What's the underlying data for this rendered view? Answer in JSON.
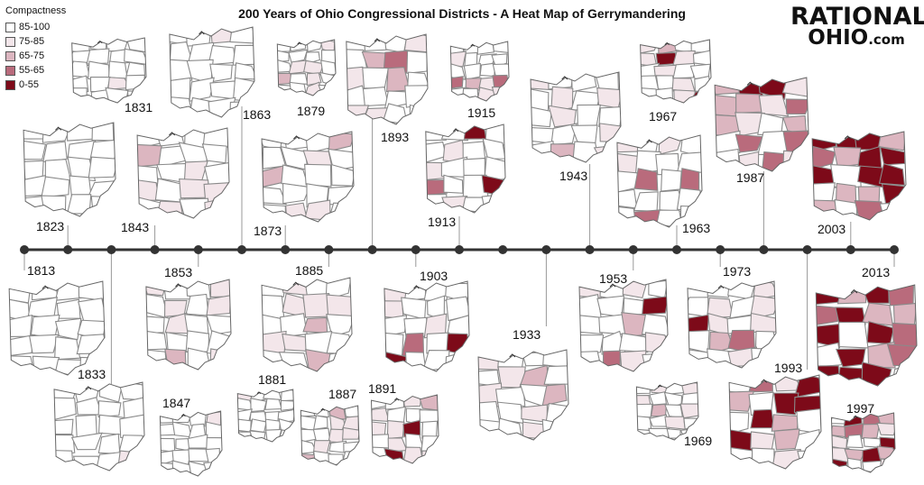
{
  "title": "200 Years of Ohio Congressional Districts - A Heat Map of Gerrymandering",
  "logo": {
    "line1": "RATIONAL",
    "line2": "OHIO",
    "line2_suffix": ".com"
  },
  "legend": {
    "title": "Compactness",
    "items": [
      {
        "label": "85-100",
        "color": "#ffffff"
      },
      {
        "label": "75-85",
        "color": "#f3e6ea"
      },
      {
        "label": "65-75",
        "color": "#dcb6c0"
      },
      {
        "label": "55-65",
        "color": "#b96b7c"
      },
      {
        "label": "0-55",
        "color": "#7d0a19"
      }
    ]
  },
  "timeline": {
    "line_color": "#333333",
    "dot_color": "#333333",
    "years": [
      "1813",
      "1823",
      "1831",
      "1833",
      "1843",
      "1847",
      "1853",
      "1863",
      "1873",
      "1879",
      "1881",
      "1885",
      "1887",
      "1891",
      "1893",
      "1903",
      "1913",
      "1915",
      "1933",
      "1943",
      "1953",
      "1963",
      "1967",
      "1969",
      "1973",
      "1987",
      "1993",
      "1997",
      "2003",
      "2013"
    ]
  },
  "maps": [
    {
      "year": "1813",
      "level": "low"
    },
    {
      "year": "1823",
      "level": "low"
    },
    {
      "year": "1831",
      "level": "light"
    },
    {
      "year": "1833",
      "level": "light"
    },
    {
      "year": "1843",
      "level": "medium"
    },
    {
      "year": "1847",
      "level": "light"
    },
    {
      "year": "1853",
      "level": "medium"
    },
    {
      "year": "1863",
      "level": "light"
    },
    {
      "year": "1873",
      "level": "medium"
    },
    {
      "year": "1879",
      "level": "medium"
    },
    {
      "year": "1881",
      "level": "light"
    },
    {
      "year": "1885",
      "level": "medium"
    },
    {
      "year": "1887",
      "level": "medium"
    },
    {
      "year": "1891",
      "level": "high"
    },
    {
      "year": "1893",
      "level": "high"
    },
    {
      "year": "1903",
      "level": "high"
    },
    {
      "year": "1913",
      "level": "high"
    },
    {
      "year": "1915",
      "level": "high"
    },
    {
      "year": "1933",
      "level": "medium"
    },
    {
      "year": "1943",
      "level": "medium"
    },
    {
      "year": "1953",
      "level": "high"
    },
    {
      "year": "1963",
      "level": "high"
    },
    {
      "year": "1967",
      "level": "high"
    },
    {
      "year": "1969",
      "level": "medium"
    },
    {
      "year": "1973",
      "level": "high"
    },
    {
      "year": "1987",
      "level": "severe"
    },
    {
      "year": "1993",
      "level": "severe"
    },
    {
      "year": "1997",
      "level": "severe"
    },
    {
      "year": "2003",
      "level": "extreme"
    },
    {
      "year": "2013",
      "level": "extreme"
    }
  ]
}
